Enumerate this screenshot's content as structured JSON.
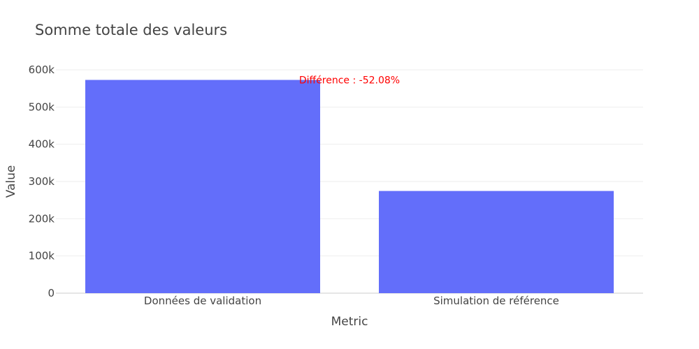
{
  "colors": {
    "bar": "#636efa",
    "grid": "#eeeeee",
    "axis_line": "#e6e6e6",
    "text": "#444444",
    "annotation": "#ff0000"
  },
  "chart_data": {
    "type": "bar",
    "title": "Somme totale des valeurs",
    "xlabel": "Metric",
    "ylabel": "Value",
    "categories": [
      "Données de validation",
      "Simulation de référence"
    ],
    "values": [
      572800,
      274500
    ],
    "ylim": [
      0,
      600000
    ],
    "y_ticks": [
      {
        "value": 0,
        "label": "0"
      },
      {
        "value": 100000,
        "label": "100k"
      },
      {
        "value": 200000,
        "label": "200k"
      },
      {
        "value": 300000,
        "label": "300k"
      },
      {
        "value": 400000,
        "label": "400k"
      },
      {
        "value": 500000,
        "label": "500k"
      },
      {
        "value": 600000,
        "label": "600k"
      }
    ],
    "grid": true,
    "annotation": {
      "text": "Différence : -52.08%",
      "x_position": "between-categories",
      "y_value": 572800
    }
  }
}
